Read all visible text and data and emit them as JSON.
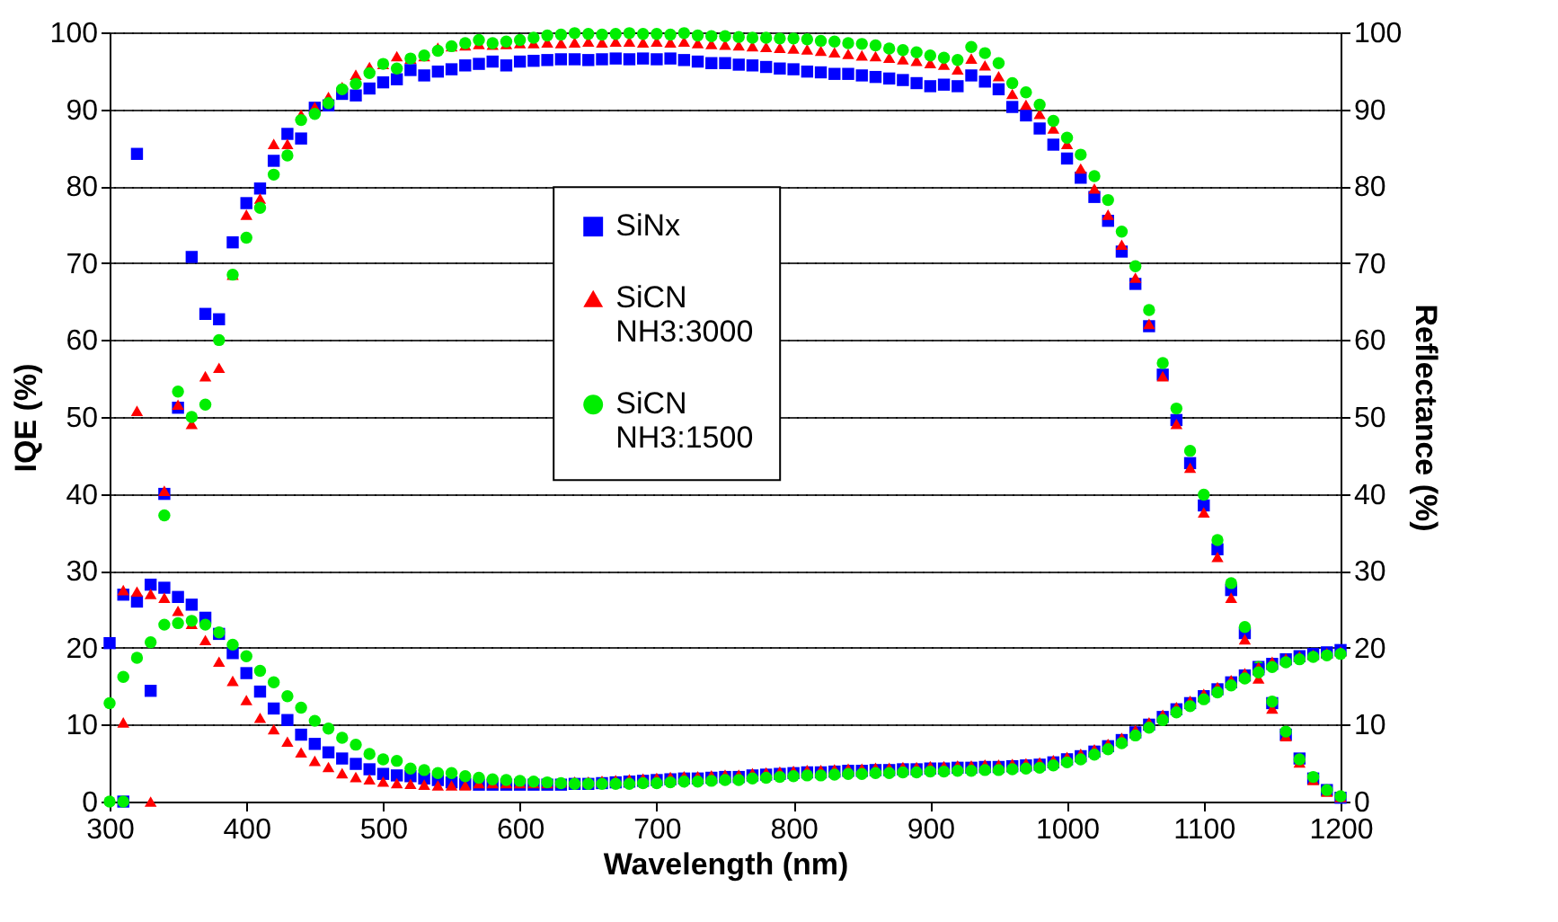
{
  "chart_data": {
    "type": "scatter",
    "xlabel": "Wavelength (nm)",
    "ylabel": "IQE (%)",
    "y2label": "Reflectance (%)",
    "xlim": [
      300,
      1200
    ],
    "xticks": [
      300,
      400,
      500,
      600,
      700,
      800,
      900,
      {
        "value": 1000,
        "label": "1000"
      },
      {
        "value": 1100,
        "label": "1100"
      },
      {
        "value": 1200,
        "label": "1200"
      }
    ],
    "ylim": [
      0,
      100
    ],
    "yticks": [
      0,
      10,
      20,
      30,
      40,
      50,
      60,
      70,
      80,
      90,
      100
    ],
    "y2lim": [
      0,
      100
    ],
    "y2ticks": [
      0,
      10,
      20,
      30,
      40,
      50,
      60,
      70,
      80,
      90,
      100
    ],
    "grid": "y",
    "legend": "center",
    "x": [
      300,
      310,
      320,
      330,
      340,
      350,
      360,
      370,
      380,
      390,
      400,
      410,
      420,
      430,
      440,
      450,
      460,
      470,
      480,
      490,
      500,
      510,
      520,
      530,
      540,
      550,
      560,
      570,
      580,
      590,
      600,
      610,
      620,
      630,
      640,
      650,
      660,
      670,
      680,
      690,
      700,
      710,
      720,
      730,
      740,
      750,
      760,
      770,
      780,
      790,
      800,
      810,
      820,
      830,
      840,
      850,
      860,
      870,
      880,
      890,
      900,
      910,
      920,
      930,
      940,
      950,
      960,
      970,
      980,
      990,
      1000,
      1010,
      1020,
      1030,
      1040,
      1050,
      1060,
      1070,
      1080,
      1090,
      1100,
      1110,
      1120,
      1130,
      1140,
      1150,
      1160,
      1170,
      1180,
      1190,
      1200
    ],
    "series": [
      {
        "name": "SiNx",
        "color": "#0000ff",
        "marker": "square",
        "values": [
          null,
          0,
          84.2,
          14.4,
          40.0,
          51.2,
          70.8,
          63.4,
          62.7,
          72.7,
          77.8,
          79.7,
          83.3,
          86.8,
          86.2,
          90.2,
          90.5,
          92.0,
          91.8,
          92.7,
          93.5,
          93.9,
          95.1,
          94.4,
          94.9,
          95.2,
          95.7,
          95.9,
          96.2,
          95.7,
          96.2,
          96.3,
          96.4,
          96.5,
          96.5,
          96.4,
          96.5,
          96.6,
          96.5,
          96.6,
          96.5,
          96.6,
          96.4,
          96.2,
          96.0,
          96.0,
          95.8,
          95.7,
          95.5,
          95.3,
          95.2,
          94.9,
          94.8,
          94.6,
          94.6,
          94.4,
          94.2,
          94.0,
          93.8,
          93.4,
          93.0,
          93.2,
          93.0,
          94.4,
          93.6,
          92.6,
          90.3,
          89.2,
          87.5,
          85.4,
          83.6,
          81.1,
          78.6,
          75.5,
          71.5,
          67.3,
          61.8,
          55.5,
          49.6,
          44.0,
          38.5,
          32.8,
          27.5,
          21.9,
          17.5,
          12.8,
          8.7,
          5.6,
          3.0,
          1.5,
          0.5
        ]
      },
      {
        "name": "SiCN\nNH3:3000",
        "color": "#ff0000",
        "marker": "triangle",
        "values": [
          null,
          10.3,
          50.8,
          0,
          40.4,
          51.6,
          49.1,
          55.3,
          56.4,
          68.5,
          76.3,
          78.4,
          85.5,
          85.5,
          89.3,
          90.3,
          91.6,
          92.9,
          94.5,
          95.5,
          95.9,
          96.9,
          96.6,
          96.9,
          98.0,
          98.2,
          98.3,
          98.5,
          98.4,
          98.5,
          98.6,
          98.6,
          98.7,
          98.6,
          98.7,
          98.8,
          98.7,
          98.8,
          98.8,
          98.7,
          98.8,
          98.7,
          98.8,
          98.6,
          98.5,
          98.4,
          98.3,
          98.2,
          98.1,
          98.0,
          97.9,
          97.8,
          97.6,
          97.4,
          97.2,
          97.0,
          96.9,
          96.7,
          96.5,
          96.3,
          96.0,
          95.8,
          95.2,
          96.6,
          95.7,
          94.3,
          92.0,
          90.6,
          89.4,
          87.5,
          85.5,
          82.3,
          79.7,
          76.3,
          72.4,
          68.1,
          62.1,
          55.3,
          49.1,
          43.4,
          37.6,
          31.8,
          26.5,
          21.1,
          16.0,
          12.1,
          8.5,
          5.1,
          2.8,
          1.3,
          0.6
        ]
      },
      {
        "name": "SiCN\nNH3:1500",
        "color": "#00ee00",
        "marker": "circle",
        "values": [
          0,
          0,
          null,
          null,
          37.2,
          53.3,
          50.0,
          51.6,
          60.0,
          68.5,
          73.3,
          77.2,
          81.5,
          84.0,
          88.6,
          89.4,
          90.8,
          92.6,
          93.3,
          94.7,
          95.9,
          95.3,
          96.6,
          97.0,
          97.6,
          98.2,
          98.6,
          99.0,
          98.6,
          98.8,
          99.0,
          99.3,
          99.6,
          99.7,
          99.9,
          99.8,
          99.7,
          99.8,
          99.9,
          99.8,
          99.8,
          99.7,
          99.9,
          99.6,
          99.5,
          99.5,
          99.4,
          99.3,
          99.3,
          99.2,
          99.2,
          99.1,
          98.9,
          98.8,
          98.6,
          98.5,
          98.3,
          97.9,
          97.7,
          97.4,
          97.0,
          96.7,
          96.4,
          98.1,
          97.3,
          96.0,
          93.4,
          92.2,
          90.6,
          88.5,
          86.3,
          84.1,
          81.3,
          78.2,
          74.1,
          69.6,
          63.9,
          57.0,
          51.1,
          45.6,
          39.9,
          34.0,
          28.4,
          22.7,
          17.5,
          13.0,
          9.1,
          5.5,
          3.2,
          1.5,
          0.7
        ]
      },
      {
        "color": "#0000ff",
        "marker": "square",
        "values": [
          20.6,
          26.9,
          26.0,
          28.2,
          27.8,
          26.6,
          25.6,
          23.9,
          21.8,
          19.3,
          16.7,
          14.3,
          12.1,
          10.6,
          8.7,
          7.5,
          6.4,
          5.6,
          4.9,
          4.2,
          3.6,
          3.4,
          3.3,
          3.0,
          2.8,
          2.5,
          2.3,
          2.2,
          2.2,
          2.2,
          2.2,
          2.2,
          2.2,
          2.2,
          2.3,
          2.3,
          2.4,
          2.5,
          2.6,
          2.7,
          2.8,
          2.9,
          3.0,
          3.0,
          3.1,
          3.2,
          3.2,
          3.4,
          3.5,
          3.6,
          3.7,
          3.8,
          3.8,
          3.9,
          4.0,
          4.0,
          4.1,
          4.1,
          4.2,
          4.2,
          4.3,
          4.3,
          4.4,
          4.4,
          4.5,
          4.5,
          4.6,
          4.7,
          4.8,
          5.1,
          5.5,
          5.9,
          6.5,
          7.2,
          8.0,
          9.0,
          10.0,
          11.0,
          12.0,
          12.8,
          13.7,
          14.6,
          15.5,
          16.4,
          17.2,
          17.9,
          18.5,
          18.9,
          19.2,
          19.4,
          19.7
        ]
      },
      {
        "color": "#ff0000",
        "marker": "triangle",
        "values": [
          null,
          27.5,
          27.3,
          27.0,
          26.5,
          24.8,
          23.1,
          21.0,
          18.2,
          15.7,
          13.2,
          10.9,
          9.4,
          7.8,
          6.4,
          5.3,
          4.5,
          3.7,
          3.2,
          2.9,
          2.6,
          2.4,
          2.3,
          2.2,
          2.1,
          2.1,
          2.1,
          2.4,
          2.4,
          2.4,
          2.4,
          2.4,
          2.4,
          2.5,
          2.6,
          2.6,
          2.7,
          2.8,
          2.9,
          3.0,
          3.1,
          3.2,
          3.3,
          3.3,
          3.4,
          3.5,
          3.5,
          3.7,
          3.8,
          3.9,
          4.0,
          4.1,
          4.1,
          4.2,
          4.3,
          4.3,
          4.4,
          4.4,
          4.5,
          4.5,
          4.6,
          4.6,
          4.7,
          4.7,
          4.8,
          4.8,
          4.9,
          5.0,
          5.1,
          5.4,
          5.8,
          6.2,
          6.8,
          7.5,
          8.3,
          9.3,
          10.3,
          11.3,
          12.3,
          13.1,
          14.0,
          14.9,
          15.8,
          16.7,
          17.5,
          18.2,
          18.6,
          18.9,
          19.1,
          19.3,
          19.5
        ]
      },
      {
        "color": "#00ee00",
        "marker": "circle",
        "values": [
          12.8,
          16.2,
          18.7,
          20.7,
          23.0,
          23.2,
          23.5,
          23.0,
          22.0,
          20.4,
          18.9,
          17.0,
          15.5,
          13.7,
          12.2,
          10.5,
          9.5,
          8.3,
          7.4,
          6.2,
          5.5,
          5.3,
          4.3,
          4.1,
          3.7,
          3.7,
          3.3,
          3.1,
          2.9,
          2.8,
          2.7,
          2.6,
          2.5,
          2.4,
          2.3,
          2.3,
          2.3,
          2.3,
          2.3,
          2.4,
          2.4,
          2.5,
          2.6,
          2.6,
          2.7,
          2.8,
          2.8,
          3.0,
          3.1,
          3.2,
          3.3,
          3.4,
          3.4,
          3.5,
          3.6,
          3.6,
          3.7,
          3.7,
          3.8,
          3.8,
          3.9,
          3.9,
          4.0,
          4.0,
          4.1,
          4.1,
          4.2,
          4.3,
          4.4,
          4.7,
          5.1,
          5.5,
          6.1,
          6.8,
          7.6,
          8.6,
          9.6,
          10.6,
          11.6,
          12.4,
          13.3,
          14.2,
          15.1,
          16.0,
          16.8,
          17.5,
          18.1,
          18.5,
          18.8,
          19.0,
          19.2
        ]
      }
    ]
  }
}
